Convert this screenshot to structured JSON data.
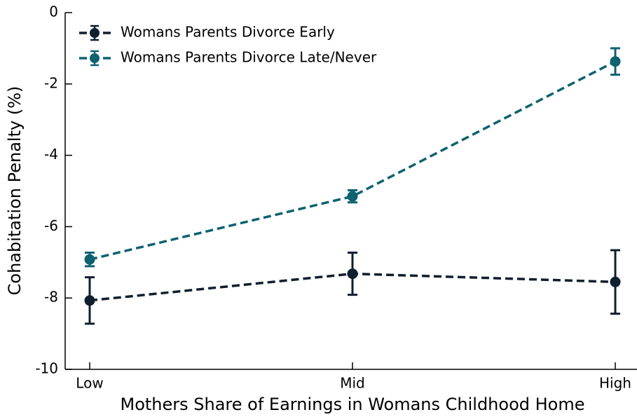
{
  "chart_data": {
    "type": "line",
    "x_label": "Mothers Share of Earnings in Womans Childhood Home",
    "y_label": "Cohabitation Penalty (%)",
    "categories": [
      "Low",
      "Mid",
      "High"
    ],
    "series": [
      {
        "name": "Womans Parents Divorce Early",
        "color": "#0f1f2e",
        "values": [
          -8.07,
          -7.32,
          -7.55
        ],
        "errors": [
          0.65,
          0.59,
          0.89
        ]
      },
      {
        "name": "Womans Parents Divorce Late/Never",
        "color": "#0e6270",
        "values": [
          -6.92,
          -5.15,
          -1.37
        ],
        "errors": [
          0.19,
          0.17,
          0.37
        ]
      }
    ],
    "ylim": [
      -10,
      0
    ],
    "yticks": [
      -10,
      -8,
      -6,
      -4,
      -2,
      0
    ],
    "legend": "upper left"
  }
}
